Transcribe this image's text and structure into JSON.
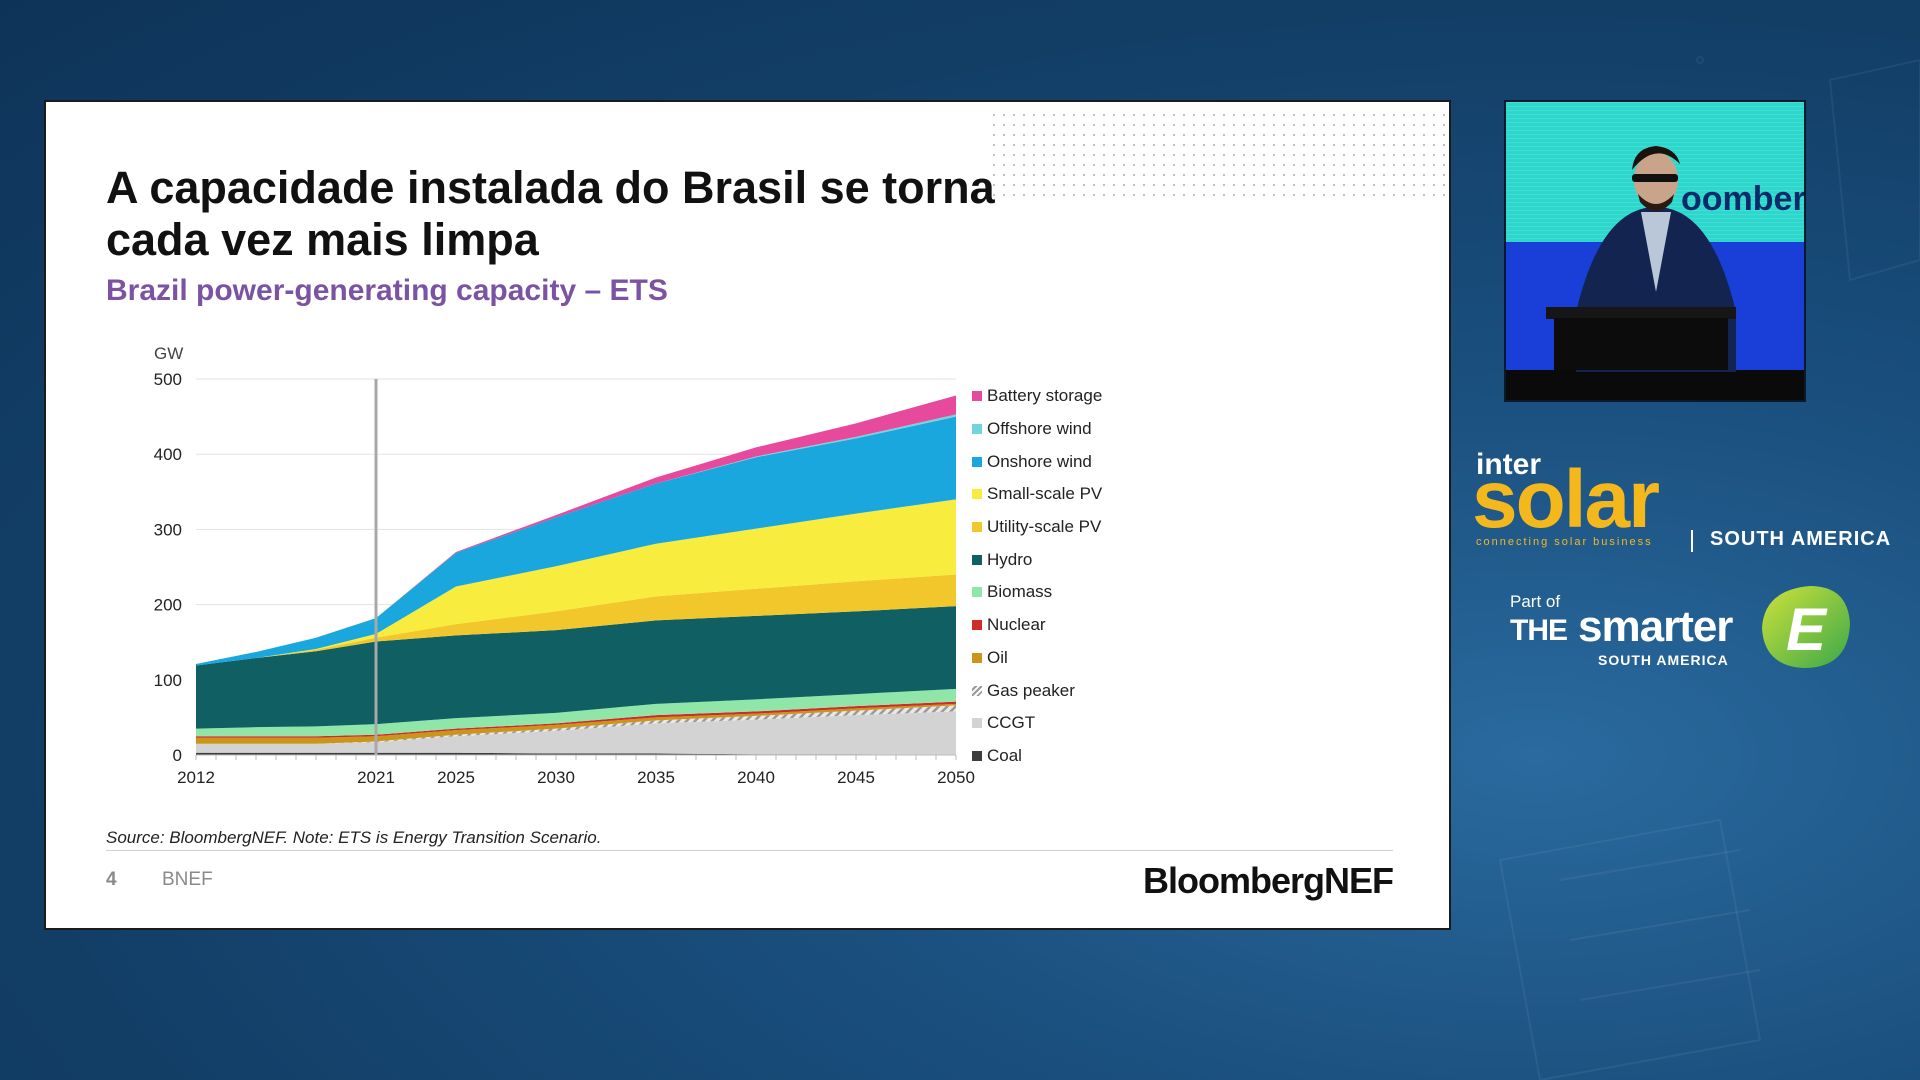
{
  "slide": {
    "title": "A capacidade instalada do Brasil se torna cada vez mais limpa",
    "subtitle": "Brazil power-generating capacity – ETS",
    "source_note": "Source: BloombergNEF. Note: ETS is Energy Transition Scenario.",
    "page_number": "4",
    "footer_brand": "BNEF",
    "logo_text": "BloombergNEF"
  },
  "chart_data": {
    "type": "area",
    "stacked": true,
    "ylabel": "GW",
    "ylim": [
      0,
      500
    ],
    "yticks": [
      0,
      100,
      200,
      300,
      400,
      500
    ],
    "xlim": [
      2012,
      2050
    ],
    "xticks": [
      2012,
      2021,
      2025,
      2030,
      2035,
      2040,
      2045,
      2050
    ],
    "marker_line_year": 2021,
    "grid": true,
    "legend_position": "right",
    "x": [
      2012,
      2015,
      2018,
      2021,
      2025,
      2030,
      2035,
      2040,
      2045,
      2050
    ],
    "series": [
      {
        "name": "Coal",
        "color": "#3d3d3d",
        "values": [
          3,
          3,
          3,
          3,
          3,
          2,
          2,
          1,
          1,
          0
        ]
      },
      {
        "name": "CCGT",
        "color": "#d3d3d3",
        "values": [
          12,
          12,
          12,
          14,
          22,
          30,
          40,
          46,
          52,
          58
        ]
      },
      {
        "name": "Gas peaker",
        "color": "#e6e6e6",
        "values": [
          0,
          0,
          0,
          1,
          2,
          3,
          4,
          5,
          6,
          8
        ]
      },
      {
        "name": "Oil",
        "color": "#c9961a",
        "values": [
          8,
          8,
          8,
          7,
          6,
          5,
          4,
          3,
          3,
          2
        ]
      },
      {
        "name": "Nuclear",
        "color": "#d12a2a",
        "values": [
          2,
          2,
          2,
          2,
          2,
          2,
          3,
          3,
          3,
          3
        ]
      },
      {
        "name": "Biomass",
        "color": "#8fe6a8",
        "values": [
          10,
          12,
          13,
          14,
          14,
          14,
          15,
          16,
          16,
          17
        ]
      },
      {
        "name": "Hydro",
        "color": "#0f5f63",
        "values": [
          84,
          92,
          100,
          110,
          110,
          110,
          111,
          111,
          110,
          110
        ]
      },
      {
        "name": "Utility-scale PV",
        "color": "#f1c72b",
        "values": [
          0,
          0,
          2,
          5,
          15,
          25,
          32,
          36,
          40,
          42
        ]
      },
      {
        "name": "Small-scale PV",
        "color": "#f8ed3e",
        "values": [
          0,
          0,
          1,
          5,
          50,
          60,
          70,
          80,
          90,
          100
        ]
      },
      {
        "name": "Onshore wind",
        "color": "#1aa7dd",
        "values": [
          2,
          8,
          15,
          21,
          45,
          65,
          80,
          95,
          100,
          110
        ]
      },
      {
        "name": "Offshore wind",
        "color": "#74d4dc",
        "values": [
          0,
          0,
          0,
          0,
          0,
          0,
          0,
          1,
          2,
          3
        ]
      },
      {
        "name": "Battery storage",
        "color": "#e7499c",
        "values": [
          0,
          0,
          0,
          0,
          1,
          3,
          8,
          12,
          18,
          25
        ]
      }
    ]
  },
  "legend": [
    {
      "label": "Battery storage",
      "color": "#e7499c"
    },
    {
      "label": "Offshore wind",
      "color": "#74d4dc"
    },
    {
      "label": "Onshore wind",
      "color": "#1aa7dd"
    },
    {
      "label": "Small-scale PV",
      "color": "#f8ed3e"
    },
    {
      "label": "Utility-scale PV",
      "color": "#f1c72b"
    },
    {
      "label": "Hydro",
      "color": "#0f5f63"
    },
    {
      "label": "Biomass",
      "color": "#8fe6a8"
    },
    {
      "label": "Nuclear",
      "color": "#d12a2a"
    },
    {
      "label": "Oil",
      "color": "#c9961a"
    },
    {
      "label": "Gas peaker",
      "color": "#cfcfcf"
    },
    {
      "label": "CCGT",
      "color": "#d3d3d3"
    },
    {
      "label": "Coal",
      "color": "#3d3d3d"
    }
  ],
  "speaker_video": {
    "backdrop_text": "oomberg"
  },
  "branding": {
    "intersolar_inter": "inter",
    "intersolar_solar": "solar",
    "intersolar_tagline": "connecting solar business",
    "intersolar_region": "SOUTH AMERICA",
    "smarter_part_of": "Part of",
    "smarter_the": "THE",
    "smarter_word": "smarter",
    "smarter_region": "SOUTH AMERICA",
    "smarter_letter": "E"
  }
}
